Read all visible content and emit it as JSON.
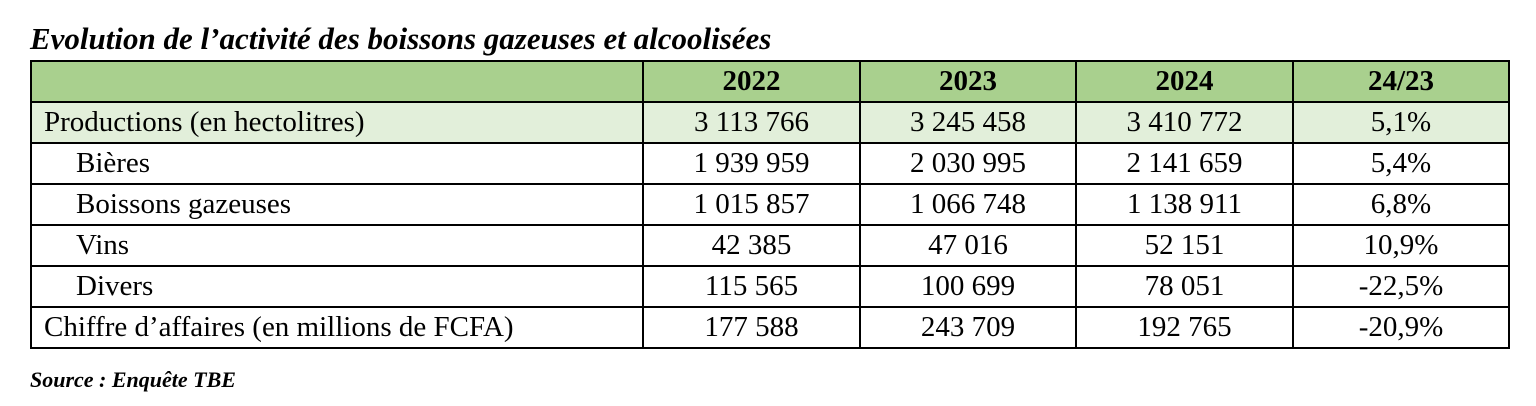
{
  "title": "Evolution de l’activité des boissons gazeuses et alcoolisées",
  "table": {
    "columns": [
      "",
      "2022",
      "2023",
      "2024",
      "24/23"
    ],
    "rows": [
      {
        "label": "Productions (en hectolitres)",
        "values": [
          "3 113 766",
          "3 245 458",
          "3 410 772",
          "5,1%"
        ]
      },
      {
        "label": "Bières",
        "values": [
          "1 939 959",
          "2 030 995",
          "2 141 659",
          "5,4%"
        ]
      },
      {
        "label": "Boissons gazeuses",
        "values": [
          "1 015 857",
          "1 066 748",
          "1 138 911",
          "6,8%"
        ]
      },
      {
        "label": "Vins",
        "values": [
          "42 385",
          "47 016",
          "52 151",
          "10,9%"
        ]
      },
      {
        "label": "Divers",
        "values": [
          "115 565",
          "100 699",
          "78 051",
          "-22,5%"
        ]
      },
      {
        "label": "Chiffre d’affaires (en millions de FCFA)",
        "values": [
          "177 588",
          "243 709",
          "192 765",
          "-20,9%"
        ]
      }
    ]
  },
  "colors": {
    "header_bg": "#a9d08e",
    "highlight_row_bg": "#e2efda"
  },
  "source": "Source : Enquête TBE"
}
